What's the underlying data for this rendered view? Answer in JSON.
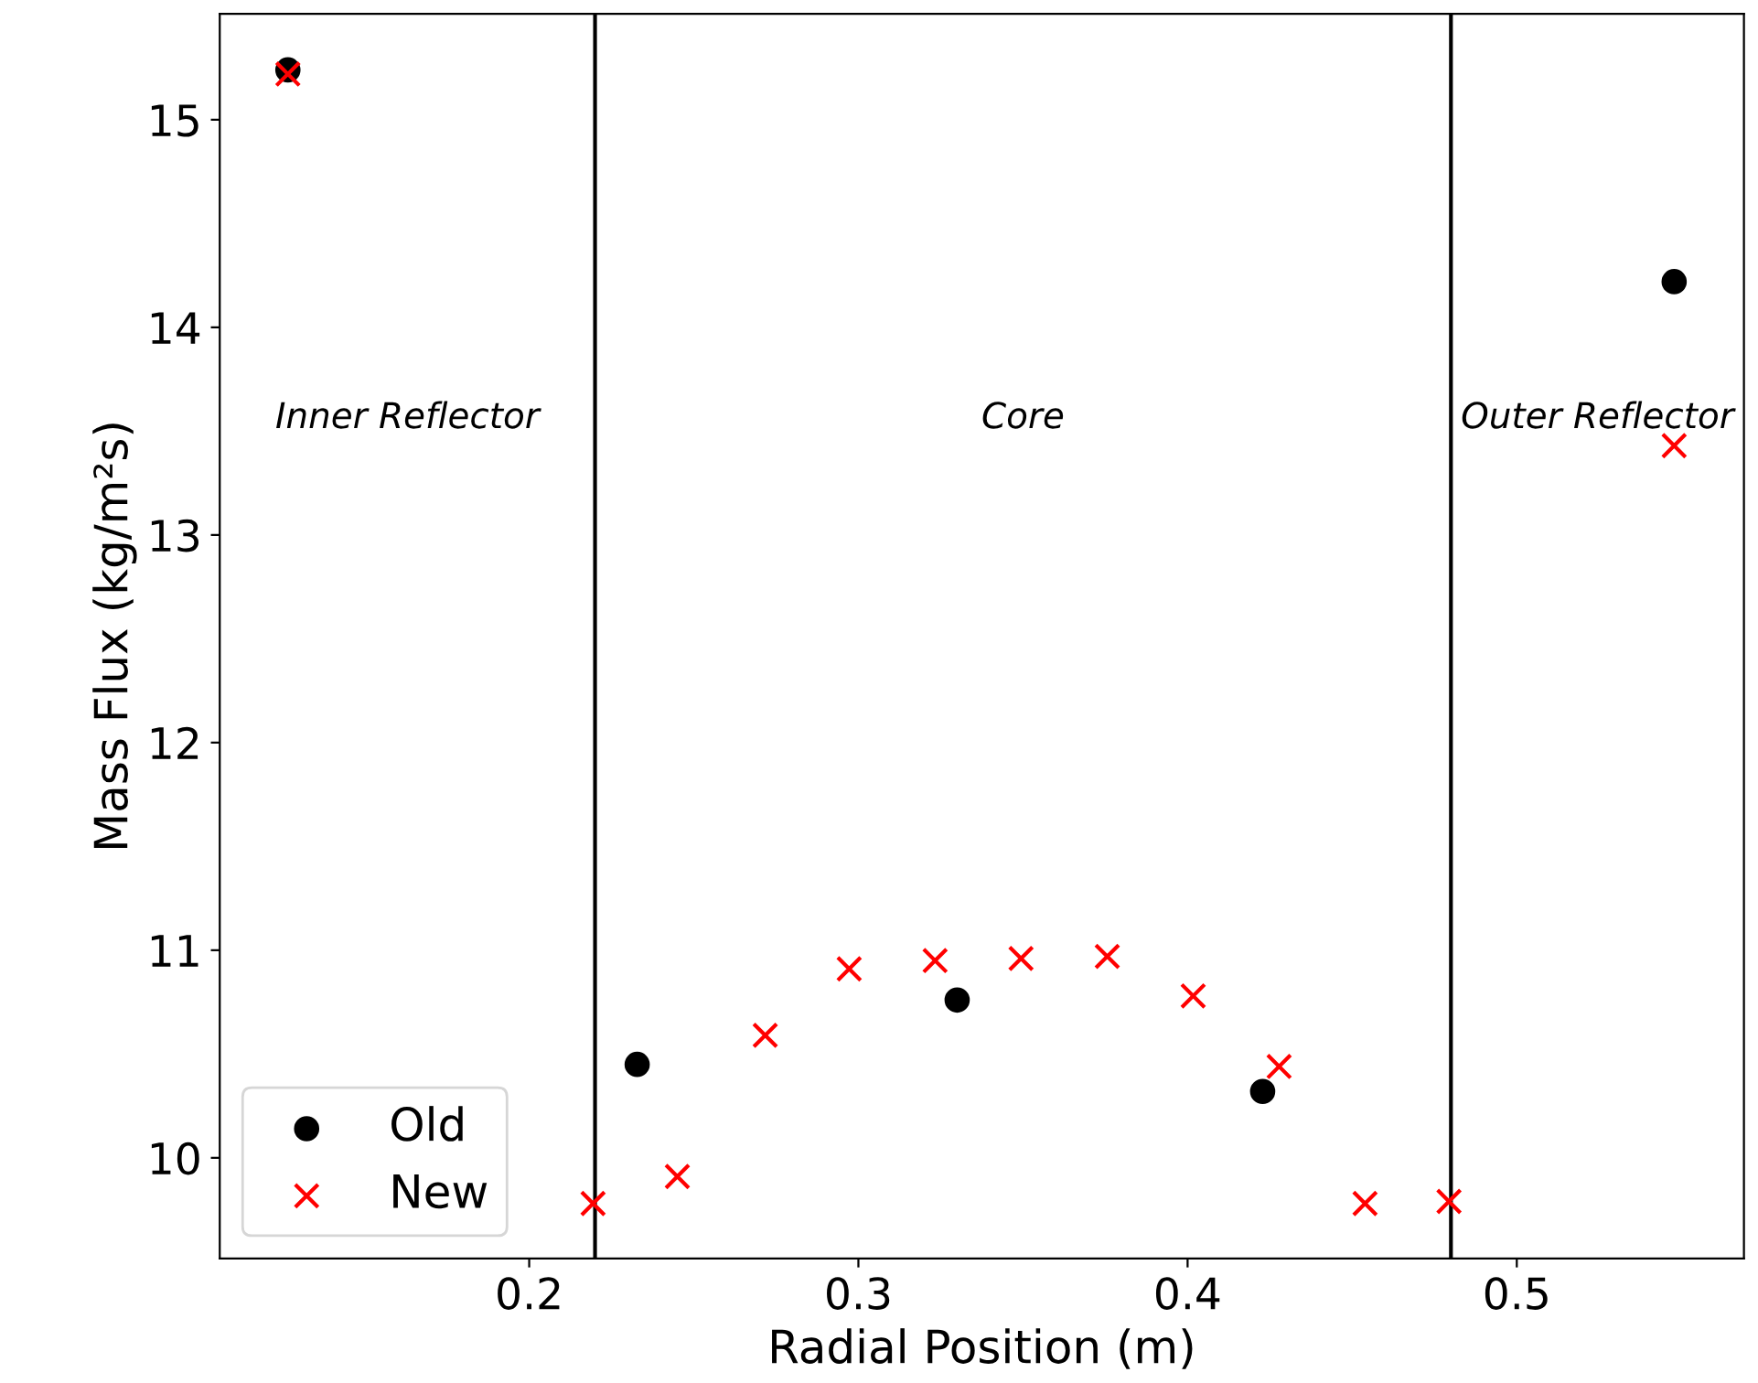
{
  "chart_data": {
    "type": "scatter",
    "xlabel": "Radial Position (m)",
    "ylabel": "Mass Flux (kg/m²s)",
    "xlim": [
      0.106,
      0.569
    ],
    "ylim": [
      9.515,
      15.51
    ],
    "xticks": [
      0.2,
      0.3,
      0.4,
      0.5
    ],
    "yticks": [
      10,
      11,
      12,
      13,
      14,
      15
    ],
    "series": [
      {
        "name": "Old",
        "color": "#000000",
        "marker": "circle",
        "x": [
          0.1267,
          0.2328,
          0.33,
          0.4228,
          0.5478
        ],
        "values": [
          15.24,
          10.45,
          10.76,
          10.32,
          14.22
        ]
      },
      {
        "name": "New",
        "color": "#ff0000",
        "marker": "cross",
        "x": [
          0.1267,
          0.2194,
          0.245,
          0.2717,
          0.2972,
          0.3233,
          0.3494,
          0.3756,
          0.4017,
          0.4278,
          0.4539,
          0.4794,
          0.5478
        ],
        "values": [
          15.22,
          9.78,
          9.91,
          10.59,
          10.91,
          10.95,
          10.96,
          10.97,
          10.78,
          10.44,
          9.78,
          9.79,
          13.43
        ]
      }
    ],
    "ref_lines": [
      {
        "axis": "x",
        "value": 0.22,
        "color": "#000000"
      },
      {
        "axis": "x",
        "value": 0.48,
        "color": "#000000"
      }
    ],
    "annotations": [
      "Inner Reflector",
      "Core",
      "Outer Reflector"
    ],
    "legend": "bottom left",
    "grid": false
  }
}
